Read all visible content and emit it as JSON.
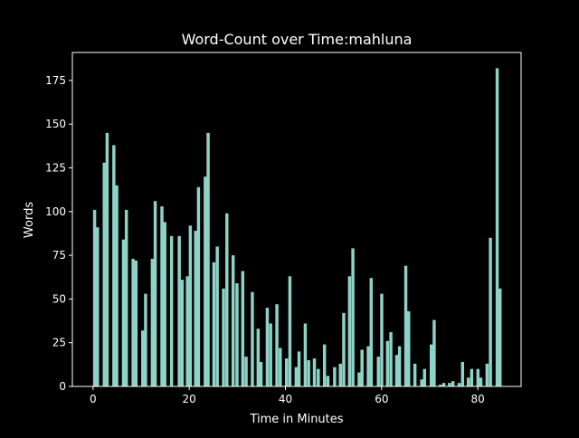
{
  "chart_data": {
    "type": "bar",
    "title": "Word-Count over Time:mahluna",
    "xlabel": "Time in Minutes",
    "ylabel": "Words",
    "xlim": [
      -4.3,
      89
    ],
    "ylim": [
      0,
      191
    ],
    "xticks": [
      0,
      20,
      40,
      60,
      80
    ],
    "yticks": [
      0,
      25,
      50,
      75,
      100,
      125,
      150,
      175
    ],
    "grid": false,
    "bar_color": "#8dd3c7",
    "background": "#000000",
    "axis_color": "#ffffff",
    "bar_width": 0.65,
    "x": [
      0,
      0.6,
      2,
      2.6,
      4,
      4.6,
      6,
      6.6,
      8,
      8.6,
      10,
      10.6,
      12,
      12.6,
      14,
      14.6,
      16,
      17.6,
      18.2,
      19.3,
      19.9,
      21,
      21.6,
      23,
      23.6,
      24.8,
      25.5,
      26.8,
      27.5,
      28.8,
      29.6,
      30.8,
      31.5,
      32.8,
      34,
      34.6,
      35.9,
      36.6,
      37.9,
      38.6,
      39.9,
      40.6,
      41.9,
      42.5,
      43.8,
      44.5,
      45.7,
      46.5,
      47.8,
      48.5,
      49.9,
      51.1,
      51.8,
      53,
      53.7,
      55,
      55.6,
      56.9,
      57.5,
      59,
      59.7,
      60.9,
      61.6,
      62.8,
      63.4,
      64.7,
      65.3,
      66.6,
      68,
      68.6,
      70,
      70.6,
      71.9,
      72.6,
      73.8,
      74.5,
      75.8,
      76.5,
      77.7,
      78.4,
      79.7,
      80.3,
      81.6,
      82.3,
      83.7,
      84.3
    ],
    "values": [
      101,
      91,
      128,
      145,
      138,
      115,
      84,
      101,
      73,
      72,
      32,
      53,
      73,
      106,
      103,
      94,
      86,
      86,
      61,
      63,
      92,
      89,
      114,
      120,
      145,
      71,
      80,
      56,
      99,
      75,
      59,
      66,
      17,
      54,
      33,
      14,
      45,
      36,
      47,
      22,
      16,
      63,
      11,
      20,
      36,
      15,
      16,
      10,
      24,
      6,
      11,
      13,
      42,
      63,
      79,
      8,
      21,
      23,
      62,
      17,
      53,
      26,
      31,
      18,
      23,
      69,
      43,
      13,
      4,
      10,
      24,
      38,
      1,
      2,
      2,
      3,
      2,
      14,
      5,
      10,
      10,
      5,
      13,
      85,
      182,
      56
    ]
  }
}
